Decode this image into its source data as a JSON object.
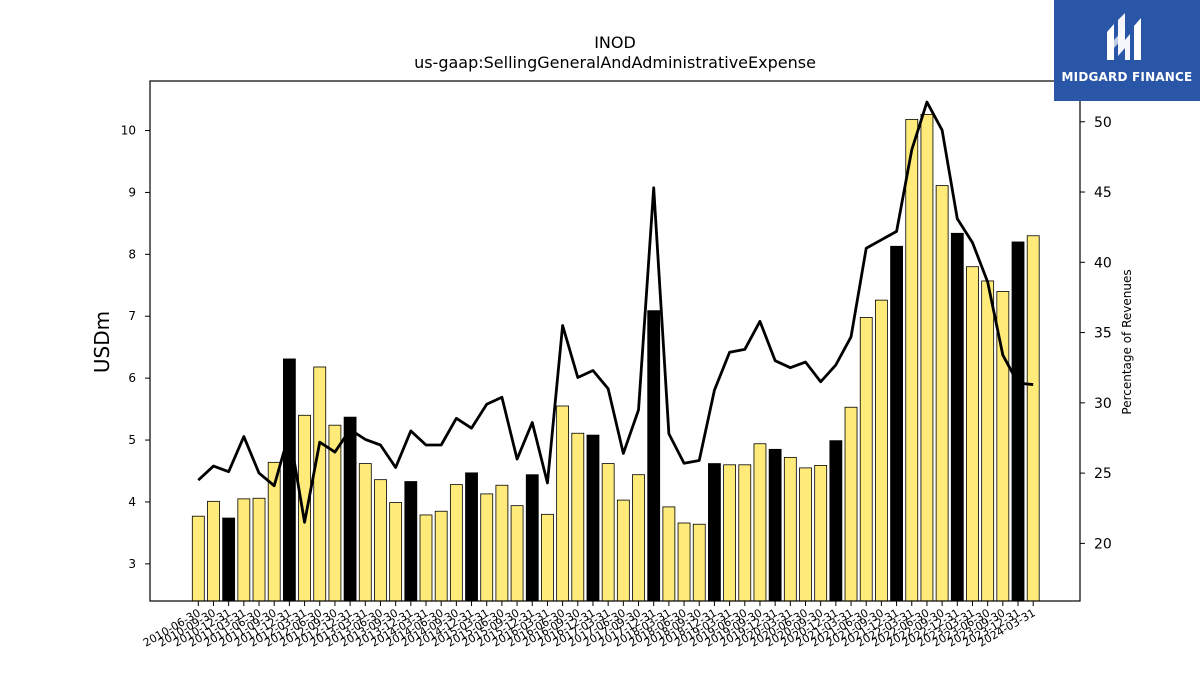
{
  "logo": {
    "text": "MIDGARD FINANCE"
  },
  "chart_data": {
    "type": "bar",
    "title": "INOD",
    "subtitle": "us-gaap:SellingGeneralAndAdministrativeExpense",
    "ylabel": "USDm",
    "y2label": "Percentage of Revenues",
    "ylim": [
      2.4,
      10.8
    ],
    "y2lim": [
      15.9,
      52.9
    ],
    "yticks": [
      3,
      4,
      5,
      6,
      7,
      8,
      9,
      10
    ],
    "y2ticks": [
      20,
      25,
      30,
      35,
      40,
      45,
      50
    ],
    "colors": {
      "bar": "#ffeb7a",
      "bar_q4": "#000000",
      "line": "#000000",
      "edge": "#000000"
    },
    "categories": [
      "2010-06-30",
      "2010-09-30",
      "2010-12-31",
      "2011-03-31",
      "2011-06-30",
      "2011-09-30",
      "2011-12-31",
      "2012-03-31",
      "2012-06-30",
      "2012-09-30",
      "2012-12-31",
      "2013-03-31",
      "2013-06-30",
      "2013-09-30",
      "2013-12-31",
      "2014-03-31",
      "2014-06-30",
      "2014-09-30",
      "2014-12-31",
      "2015-03-31",
      "2015-06-30",
      "2015-09-30",
      "2015-12-31",
      "2016-03-31",
      "2016-06-30",
      "2016-09-30",
      "2016-12-31",
      "2017-03-31",
      "2017-06-30",
      "2017-09-30",
      "2017-12-31",
      "2018-03-31",
      "2018-06-30",
      "2018-09-30",
      "2018-12-31",
      "2019-03-31",
      "2019-06-30",
      "2019-09-30",
      "2019-12-31",
      "2020-03-31",
      "2020-06-30",
      "2020-09-30",
      "2020-12-31",
      "2021-03-31",
      "2021-06-30",
      "2021-09-30",
      "2021-12-31",
      "2022-03-31",
      "2022-06-30",
      "2022-09-30",
      "2022-12-31",
      "2023-03-31",
      "2023-06-30",
      "2023-09-30",
      "2023-12-31",
      "2024-03-31"
    ],
    "series": [
      {
        "type": "bar",
        "values": [
          3.77,
          4.01,
          3.74,
          4.05,
          4.06,
          4.64,
          6.31,
          5.4,
          6.18,
          5.24,
          5.37,
          4.62,
          4.36,
          3.99,
          4.33,
          3.79,
          3.85,
          4.28,
          4.47,
          4.13,
          4.27,
          3.94,
          4.44,
          3.8,
          5.55,
          5.11,
          5.08,
          4.62,
          4.03,
          4.44,
          7.09,
          3.92,
          3.66,
          3.64,
          4.62,
          4.6,
          4.6,
          4.94,
          4.85,
          4.72,
          4.55,
          4.59,
          4.99,
          5.53,
          6.98,
          7.26,
          8.13,
          10.18,
          10.26,
          9.11,
          8.34,
          7.8,
          7.57,
          7.4,
          8.2,
          8.3
        ],
        "highlight": [
          false,
          false,
          true,
          false,
          false,
          false,
          true,
          false,
          false,
          false,
          true,
          false,
          false,
          false,
          true,
          false,
          false,
          false,
          true,
          false,
          false,
          false,
          true,
          false,
          false,
          false,
          true,
          false,
          false,
          false,
          true,
          false,
          false,
          false,
          true,
          false,
          false,
          false,
          true,
          false,
          false,
          false,
          true,
          false,
          false,
          false,
          true,
          false,
          false,
          false,
          true,
          false,
          false,
          false,
          true,
          false
        ]
      },
      {
        "type": "line",
        "axis": "right",
        "values": [
          24.5,
          25.5,
          25.1,
          27.6,
          25.0,
          24.1,
          27.9,
          21.5,
          27.2,
          26.5,
          28.1,
          27.4,
          27.0,
          25.4,
          28.0,
          27.0,
          27.0,
          28.9,
          28.2,
          29.9,
          30.4,
          26.0,
          28.6,
          24.3,
          35.5,
          31.8,
          32.3,
          31.0,
          26.4,
          29.5,
          45.3,
          27.8,
          25.7,
          25.9,
          30.9,
          33.6,
          33.8,
          35.8,
          33.0,
          32.5,
          32.9,
          31.5,
          32.7,
          34.7,
          41.0,
          41.6,
          42.2,
          48.0,
          51.4,
          49.4,
          43.1,
          41.4,
          38.6,
          33.4,
          31.4,
          31.3
        ]
      }
    ]
  }
}
